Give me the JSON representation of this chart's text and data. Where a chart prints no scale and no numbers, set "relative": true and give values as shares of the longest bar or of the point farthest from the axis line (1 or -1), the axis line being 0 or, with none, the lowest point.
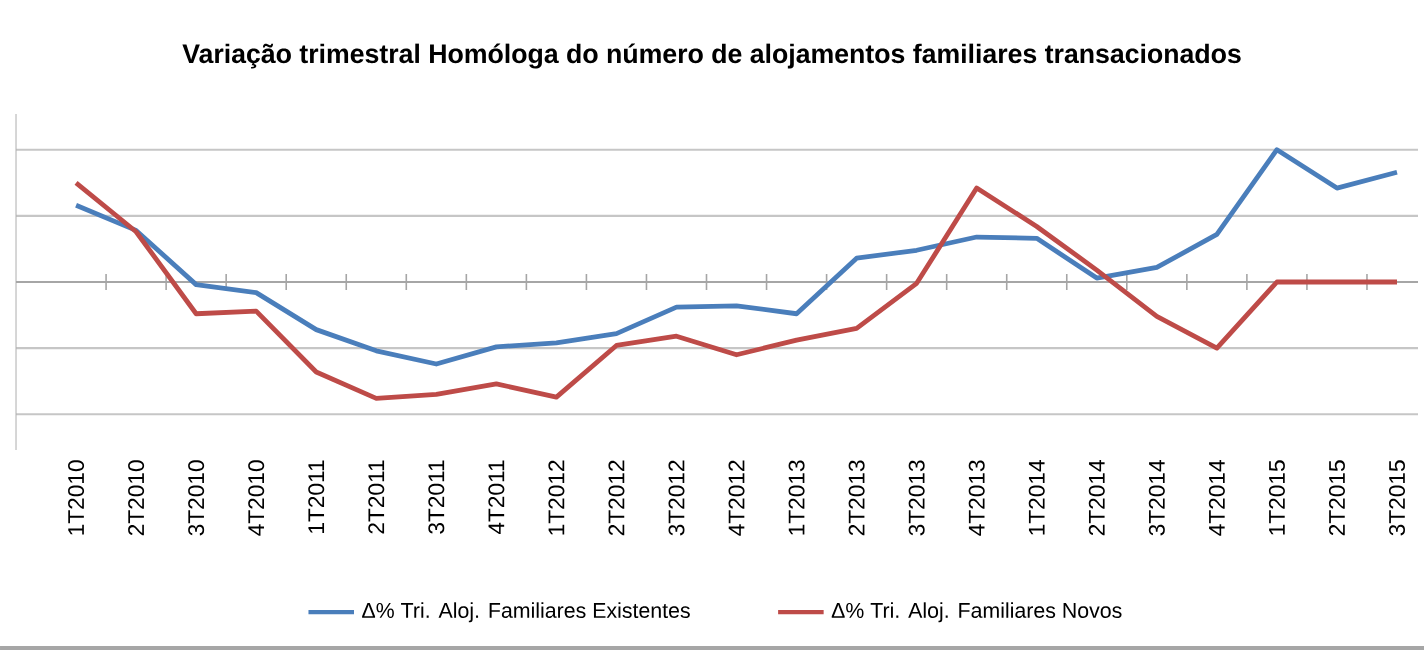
{
  "chart_data": {
    "type": "line",
    "title": "Variação trimestral Homóloga do número de alojamentos familiares transacionados",
    "relative": true,
    "grid": "y",
    "legend": "bottom",
    "categories": [
      "1T2010",
      "2T2010",
      "3T2010",
      "4T2010",
      "1T2011",
      "2T2011",
      "3T2011",
      "4T2011",
      "1T2012",
      "2T2012",
      "3T2012",
      "4T2012",
      "1T2013",
      "2T2013",
      "3T2013",
      "4T2013",
      "1T2014",
      "2T2014",
      "3T2014",
      "4T2014",
      "1T2015",
      "2T2015",
      "3T2015"
    ],
    "series": [
      {
        "name": "Δ% Tri. Aloj. Familiares Existentes",
        "color": "#4a7ebb",
        "values": [
          0.58,
          0.39,
          -0.02,
          -0.08,
          -0.36,
          -0.52,
          -0.62,
          -0.49,
          -0.46,
          -0.39,
          -0.19,
          -0.18,
          -0.24,
          0.18,
          0.24,
          0.34,
          0.33,
          0.03,
          0.11,
          0.36,
          1,
          0.71,
          0.83
        ]
      },
      {
        "name": "Δ% Tri. Aloj. Familiares Novos",
        "color": "#be4b48",
        "values": [
          0.75,
          0.38,
          -0.24,
          -0.22,
          -0.68,
          -0.88,
          -0.85,
          -0.77,
          -0.87,
          -0.48,
          -0.41,
          -0.55,
          -0.44,
          -0.35,
          -0.01,
          0.71,
          0.42,
          0.09,
          -0.26,
          -0.5,
          0,
          0,
          0
        ]
      }
    ]
  }
}
